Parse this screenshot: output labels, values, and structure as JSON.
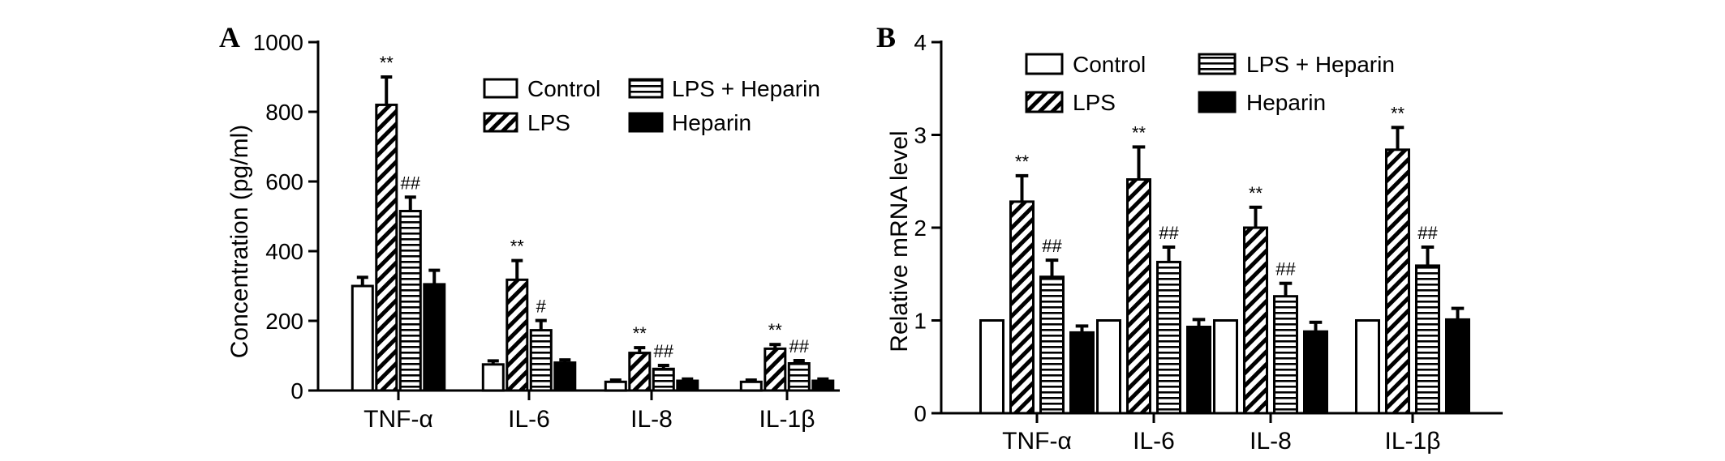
{
  "legend_labels": [
    "Control",
    "LPS",
    "LPS + Heparin",
    "Heparin"
  ],
  "chart_data": [
    {
      "type": "bar",
      "panel": "A",
      "ylabel": "Concentration (pg/ml)",
      "categories": [
        "TNF-α",
        "IL-6",
        "IL-8",
        "IL-1β"
      ],
      "ylim": [
        0,
        1000
      ],
      "yticks": [
        0,
        200,
        400,
        600,
        800,
        1000
      ],
      "legend": "top-right",
      "series": [
        {
          "name": "Control",
          "values": [
            300,
            75,
            25,
            25
          ],
          "errors": [
            25,
            10,
            5,
            5
          ],
          "pattern": "hollow"
        },
        {
          "name": "LPS",
          "values": [
            820,
            318,
            108,
            120
          ],
          "errors": [
            80,
            55,
            15,
            12
          ],
          "pattern": "diagonal"
        },
        {
          "name": "LPS + Heparin",
          "values": [
            515,
            173,
            62,
            78
          ],
          "errors": [
            40,
            28,
            10,
            8
          ],
          "pattern": "horizontal"
        },
        {
          "name": "Heparin",
          "values": [
            305,
            80,
            28,
            28
          ],
          "errors": [
            40,
            8,
            5,
            5
          ],
          "pattern": "solid"
        }
      ],
      "annotations": [
        {
          "category": "TNF-α",
          "series": "LPS",
          "text": "**"
        },
        {
          "category": "TNF-α",
          "series": "LPS + Heparin",
          "text": "##"
        },
        {
          "category": "IL-6",
          "series": "LPS",
          "text": "**"
        },
        {
          "category": "IL-6",
          "series": "LPS + Heparin",
          "text": "#"
        },
        {
          "category": "IL-8",
          "series": "LPS",
          "text": "**"
        },
        {
          "category": "IL-8",
          "series": "LPS + Heparin",
          "text": "##"
        },
        {
          "category": "IL-1β",
          "series": "LPS",
          "text": "**"
        },
        {
          "category": "IL-1β",
          "series": "LPS + Heparin",
          "text": "##"
        }
      ]
    },
    {
      "type": "bar",
      "panel": "B",
      "ylabel": "Relative mRNA level",
      "categories": [
        "TNF-α",
        "IL-6",
        "IL-8",
        "IL-1β"
      ],
      "ylim": [
        0,
        4
      ],
      "yticks": [
        0,
        1,
        2,
        3,
        4
      ],
      "legend": "top",
      "series": [
        {
          "name": "Control",
          "values": [
            1,
            1,
            1,
            1
          ],
          "errors": [
            0,
            0,
            0,
            0
          ],
          "pattern": "hollow"
        },
        {
          "name": "LPS",
          "values": [
            2.28,
            2.52,
            2.0,
            2.84
          ],
          "errors": [
            0.28,
            0.35,
            0.22,
            0.24
          ],
          "pattern": "diagonal"
        },
        {
          "name": "LPS + Heparin",
          "values": [
            1.47,
            1.63,
            1.26,
            1.59
          ],
          "errors": [
            0.18,
            0.16,
            0.14,
            0.2
          ],
          "pattern": "horizontal"
        },
        {
          "name": "Heparin",
          "values": [
            0.87,
            0.93,
            0.88,
            1.01
          ],
          "errors": [
            0.07,
            0.08,
            0.1,
            0.12
          ],
          "pattern": "solid"
        }
      ],
      "annotations": [
        {
          "category": "TNF-α",
          "series": "LPS",
          "text": "**"
        },
        {
          "category": "TNF-α",
          "series": "LPS + Heparin",
          "text": "##"
        },
        {
          "category": "IL-6",
          "series": "LPS",
          "text": "**"
        },
        {
          "category": "IL-6",
          "series": "LPS + Heparin",
          "text": "##"
        },
        {
          "category": "IL-8",
          "series": "LPS",
          "text": "**"
        },
        {
          "category": "IL-8",
          "series": "LPS + Heparin",
          "text": "##"
        },
        {
          "category": "IL-1β",
          "series": "LPS",
          "text": "**"
        },
        {
          "category": "IL-1β",
          "series": "LPS + Heparin",
          "text": "##"
        }
      ]
    }
  ]
}
